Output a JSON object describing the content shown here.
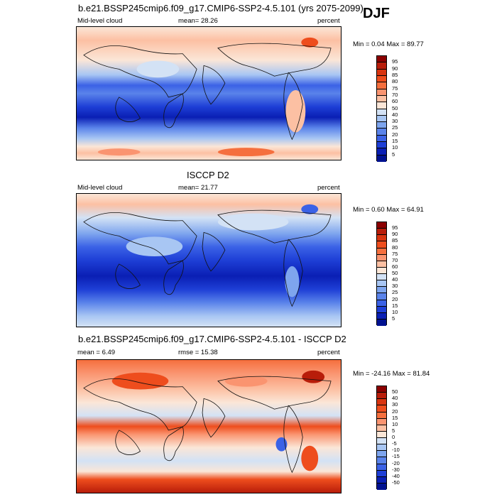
{
  "season": "DJF",
  "panels": [
    {
      "id": "model",
      "title": "b.e21.BSSP245cmip6.f09_g17.CMIP6-SSP2-4.5.101 (yrs 2075-2099)",
      "left_label": "Mid-level cloud",
      "center_label": "mean=  28.26",
      "right_label": "percent",
      "minmax": "Min =   0.04 Max =  89.77",
      "colorbar": {
        "labels": [
          "95",
          "90",
          "85",
          "80",
          "75",
          "70",
          "60",
          "50",
          "40",
          "30",
          "25",
          "20",
          "15",
          "10",
          "5"
        ],
        "colors": [
          "#8b0000",
          "#b81d0a",
          "#d8340f",
          "#ee4d1d",
          "#f56f3e",
          "#fa9470",
          "#fcc0a3",
          "#fbe6d7",
          "#d3e2f5",
          "#a8c6f3",
          "#7ea5ee",
          "#5a83ea",
          "#3b62e6",
          "#1e3fd6",
          "#0a1fb4",
          "#001290"
        ]
      }
    },
    {
      "id": "obs",
      "title": "ISCCP D2",
      "left_label": "Mid-level cloud",
      "center_label": "mean=  21.77",
      "right_label": "percent",
      "minmax": "Min =   0.60 Max =  64.91",
      "colorbar": {
        "labels": [
          "95",
          "90",
          "85",
          "80",
          "75",
          "70",
          "60",
          "50",
          "40",
          "30",
          "25",
          "20",
          "15",
          "10",
          "5"
        ],
        "colors": [
          "#8b0000",
          "#b81d0a",
          "#d8340f",
          "#ee4d1d",
          "#f56f3e",
          "#fa9470",
          "#fcc0a3",
          "#fbe6d7",
          "#d3e2f5",
          "#a8c6f3",
          "#7ea5ee",
          "#5a83ea",
          "#3b62e6",
          "#1e3fd6",
          "#0a1fb4",
          "#001290"
        ]
      }
    },
    {
      "id": "diff",
      "title": "b.e21.BSSP245cmip6.f09_g17.CMIP6-SSP2-4.5.101 - ISCCP D2",
      "left_label": "mean =   6.49",
      "center_label": "rmse =  15.38",
      "right_label": "percent",
      "minmax": "Min = -24.16 Max =  81.84",
      "colorbar": {
        "labels": [
          "50",
          "40",
          "30",
          "20",
          "15",
          "10",
          "5",
          "0",
          "-5",
          "-10",
          "-15",
          "-20",
          "-30",
          "-40",
          "-50"
        ],
        "colors": [
          "#8b0000",
          "#b81d0a",
          "#d8340f",
          "#ee4d1d",
          "#f56f3e",
          "#fa9470",
          "#fcc0a3",
          "#fbe6d7",
          "#d3e2f5",
          "#a8c6f3",
          "#7ea5ee",
          "#5a83ea",
          "#3b62e6",
          "#1e3fd6",
          "#0a1fb4",
          "#001290"
        ]
      }
    }
  ]
}
